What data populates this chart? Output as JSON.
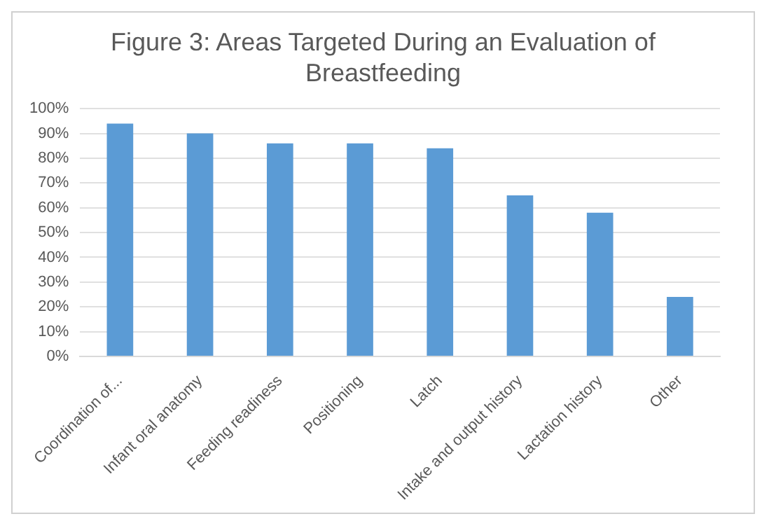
{
  "chart_data": {
    "type": "bar",
    "title": "Figure 3: Areas Targeted During an Evaluation of Breastfeeding",
    "categories": [
      "Coordination of...",
      "Infant oral anatomy",
      "Feeding readiness",
      "Positioning",
      "Latch",
      "Intake and output history",
      "Lactation history",
      "Other"
    ],
    "values": [
      94,
      90,
      86,
      86,
      84,
      65,
      58,
      24
    ],
    "color": "#5b9bd5",
    "ylim": [
      0,
      100
    ],
    "yticks": [
      {
        "value": 0,
        "label": "0%"
      },
      {
        "value": 10,
        "label": "10%"
      },
      {
        "value": 20,
        "label": "20%"
      },
      {
        "value": 30,
        "label": "30%"
      },
      {
        "value": 40,
        "label": "40%"
      },
      {
        "value": 50,
        "label": "50%"
      },
      {
        "value": 60,
        "label": "60%"
      },
      {
        "value": 70,
        "label": "70%"
      },
      {
        "value": 80,
        "label": "80%"
      },
      {
        "value": 90,
        "label": "90%"
      },
      {
        "value": 100,
        "label": "100%"
      }
    ],
    "grid": "y",
    "legend": false
  }
}
